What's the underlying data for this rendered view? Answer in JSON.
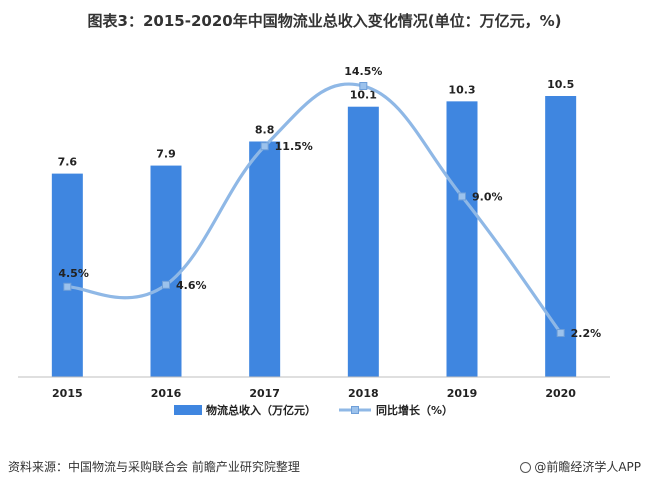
{
  "title": "图表3：2015-2020年中国物流业总收入变化情况(单位：万亿元，%)",
  "source_text": "资料来源：中国物流与采购联合会 前瞻产业研究院整理",
  "brand_text": "@前瞻经济学人APP",
  "chart_data": {
    "type": "bar",
    "categories": [
      "2015",
      "2016",
      "2017",
      "2018",
      "2019",
      "2020"
    ],
    "series": [
      {
        "name": "物流总收入（万亿元）",
        "kind": "bar",
        "values": [
          7.6,
          7.9,
          8.8,
          10.1,
          10.3,
          10.5
        ],
        "labels": [
          "7.6",
          "7.9",
          "8.8",
          "10.1",
          "10.3",
          "10.5"
        ],
        "color": "#3f86e0"
      },
      {
        "name": "同比增长（%）",
        "kind": "line",
        "values": [
          4.5,
          4.6,
          11.5,
          14.5,
          9.0,
          2.2
        ],
        "labels": [
          "4.5%",
          "4.6%",
          "11.5%",
          "14.5%",
          "9.0%",
          "2.2%"
        ],
        "color": "#8fb8e6"
      }
    ],
    "legend_position": "bottom",
    "grid": false
  }
}
